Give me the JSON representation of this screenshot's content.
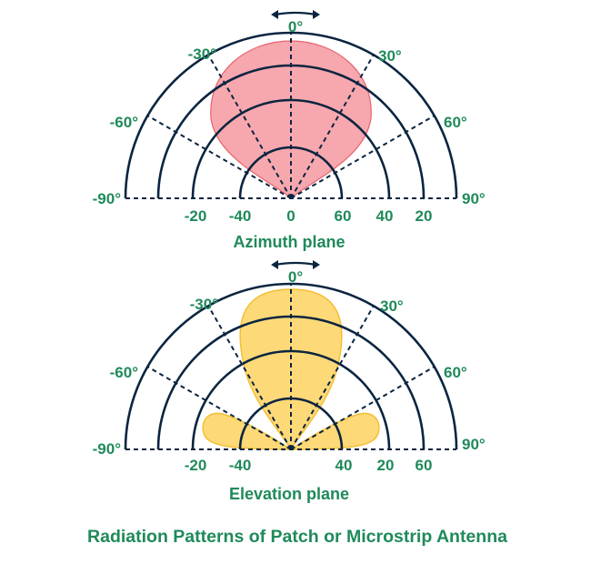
{
  "colors": {
    "text": "#1f8a5a",
    "axes": "#0b2540",
    "azimuth_fill": "#f7a7ae",
    "azimuth_stroke": "#e7646f",
    "elevation_fill": "#fdd978",
    "elevation_stroke": "#f4bf34"
  },
  "azimuth": {
    "caption": "Azimuth plane",
    "angles": {
      "top": "0°",
      "left30": "-30°",
      "right30": "30°",
      "left60": "-60°",
      "right60": "60°",
      "left90": "-90°",
      "right90": "90°"
    },
    "radial": [
      "-20",
      "-40",
      "0",
      "60",
      "40",
      "20"
    ]
  },
  "elevation": {
    "caption": "Elevation plane",
    "angles": {
      "top": "0°",
      "left30": "-30°",
      "right30": "30°",
      "left60": "-60°",
      "right60": "60°",
      "left90": "-90°",
      "right90": "90°"
    },
    "radial": [
      "-20",
      "-40",
      "40",
      "20",
      "60"
    ]
  },
  "title": "Radiation Patterns of Patch or Microstrip Antenna"
}
